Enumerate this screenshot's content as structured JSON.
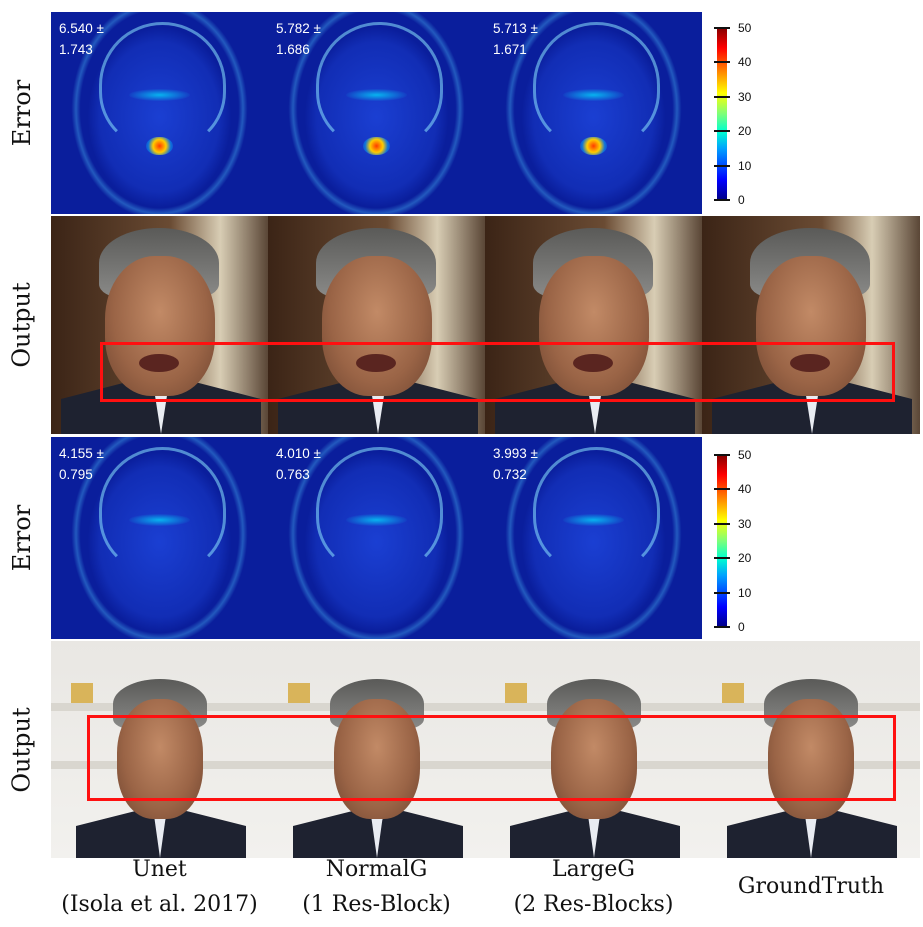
{
  "row_labels": {
    "error_1": "Error",
    "output_1": "Output",
    "error_2": "Error",
    "output_2": "Output"
  },
  "error_values_1": [
    {
      "mean": "6.540 ±",
      "std": "1.743"
    },
    {
      "mean": "5.782 ±",
      "std": "1.686"
    },
    {
      "mean": "5.713 ±",
      "std": "1.671"
    }
  ],
  "error_values_2": [
    {
      "mean": "4.155 ±",
      "std": "0.795"
    },
    {
      "mean": "4.010 ±",
      "std": "0.763"
    },
    {
      "mean": "3.993 ±",
      "std": "0.732"
    }
  ],
  "colorbar_ticks": [
    "50",
    "40",
    "30",
    "20",
    "10",
    "0"
  ],
  "columns": [
    {
      "line1": "Unet",
      "line2": "(Isola et al. 2017)"
    },
    {
      "line1": "NormalG",
      "line2": "(1 Res-Block)"
    },
    {
      "line1": "LargeG",
      "line2": "(2 Res-Blocks)"
    },
    {
      "line1": "GroundTruth",
      "line2": ""
    }
  ],
  "colors": {
    "highlight_box": "#ff1010",
    "error_background": "#0a1e9c"
  }
}
